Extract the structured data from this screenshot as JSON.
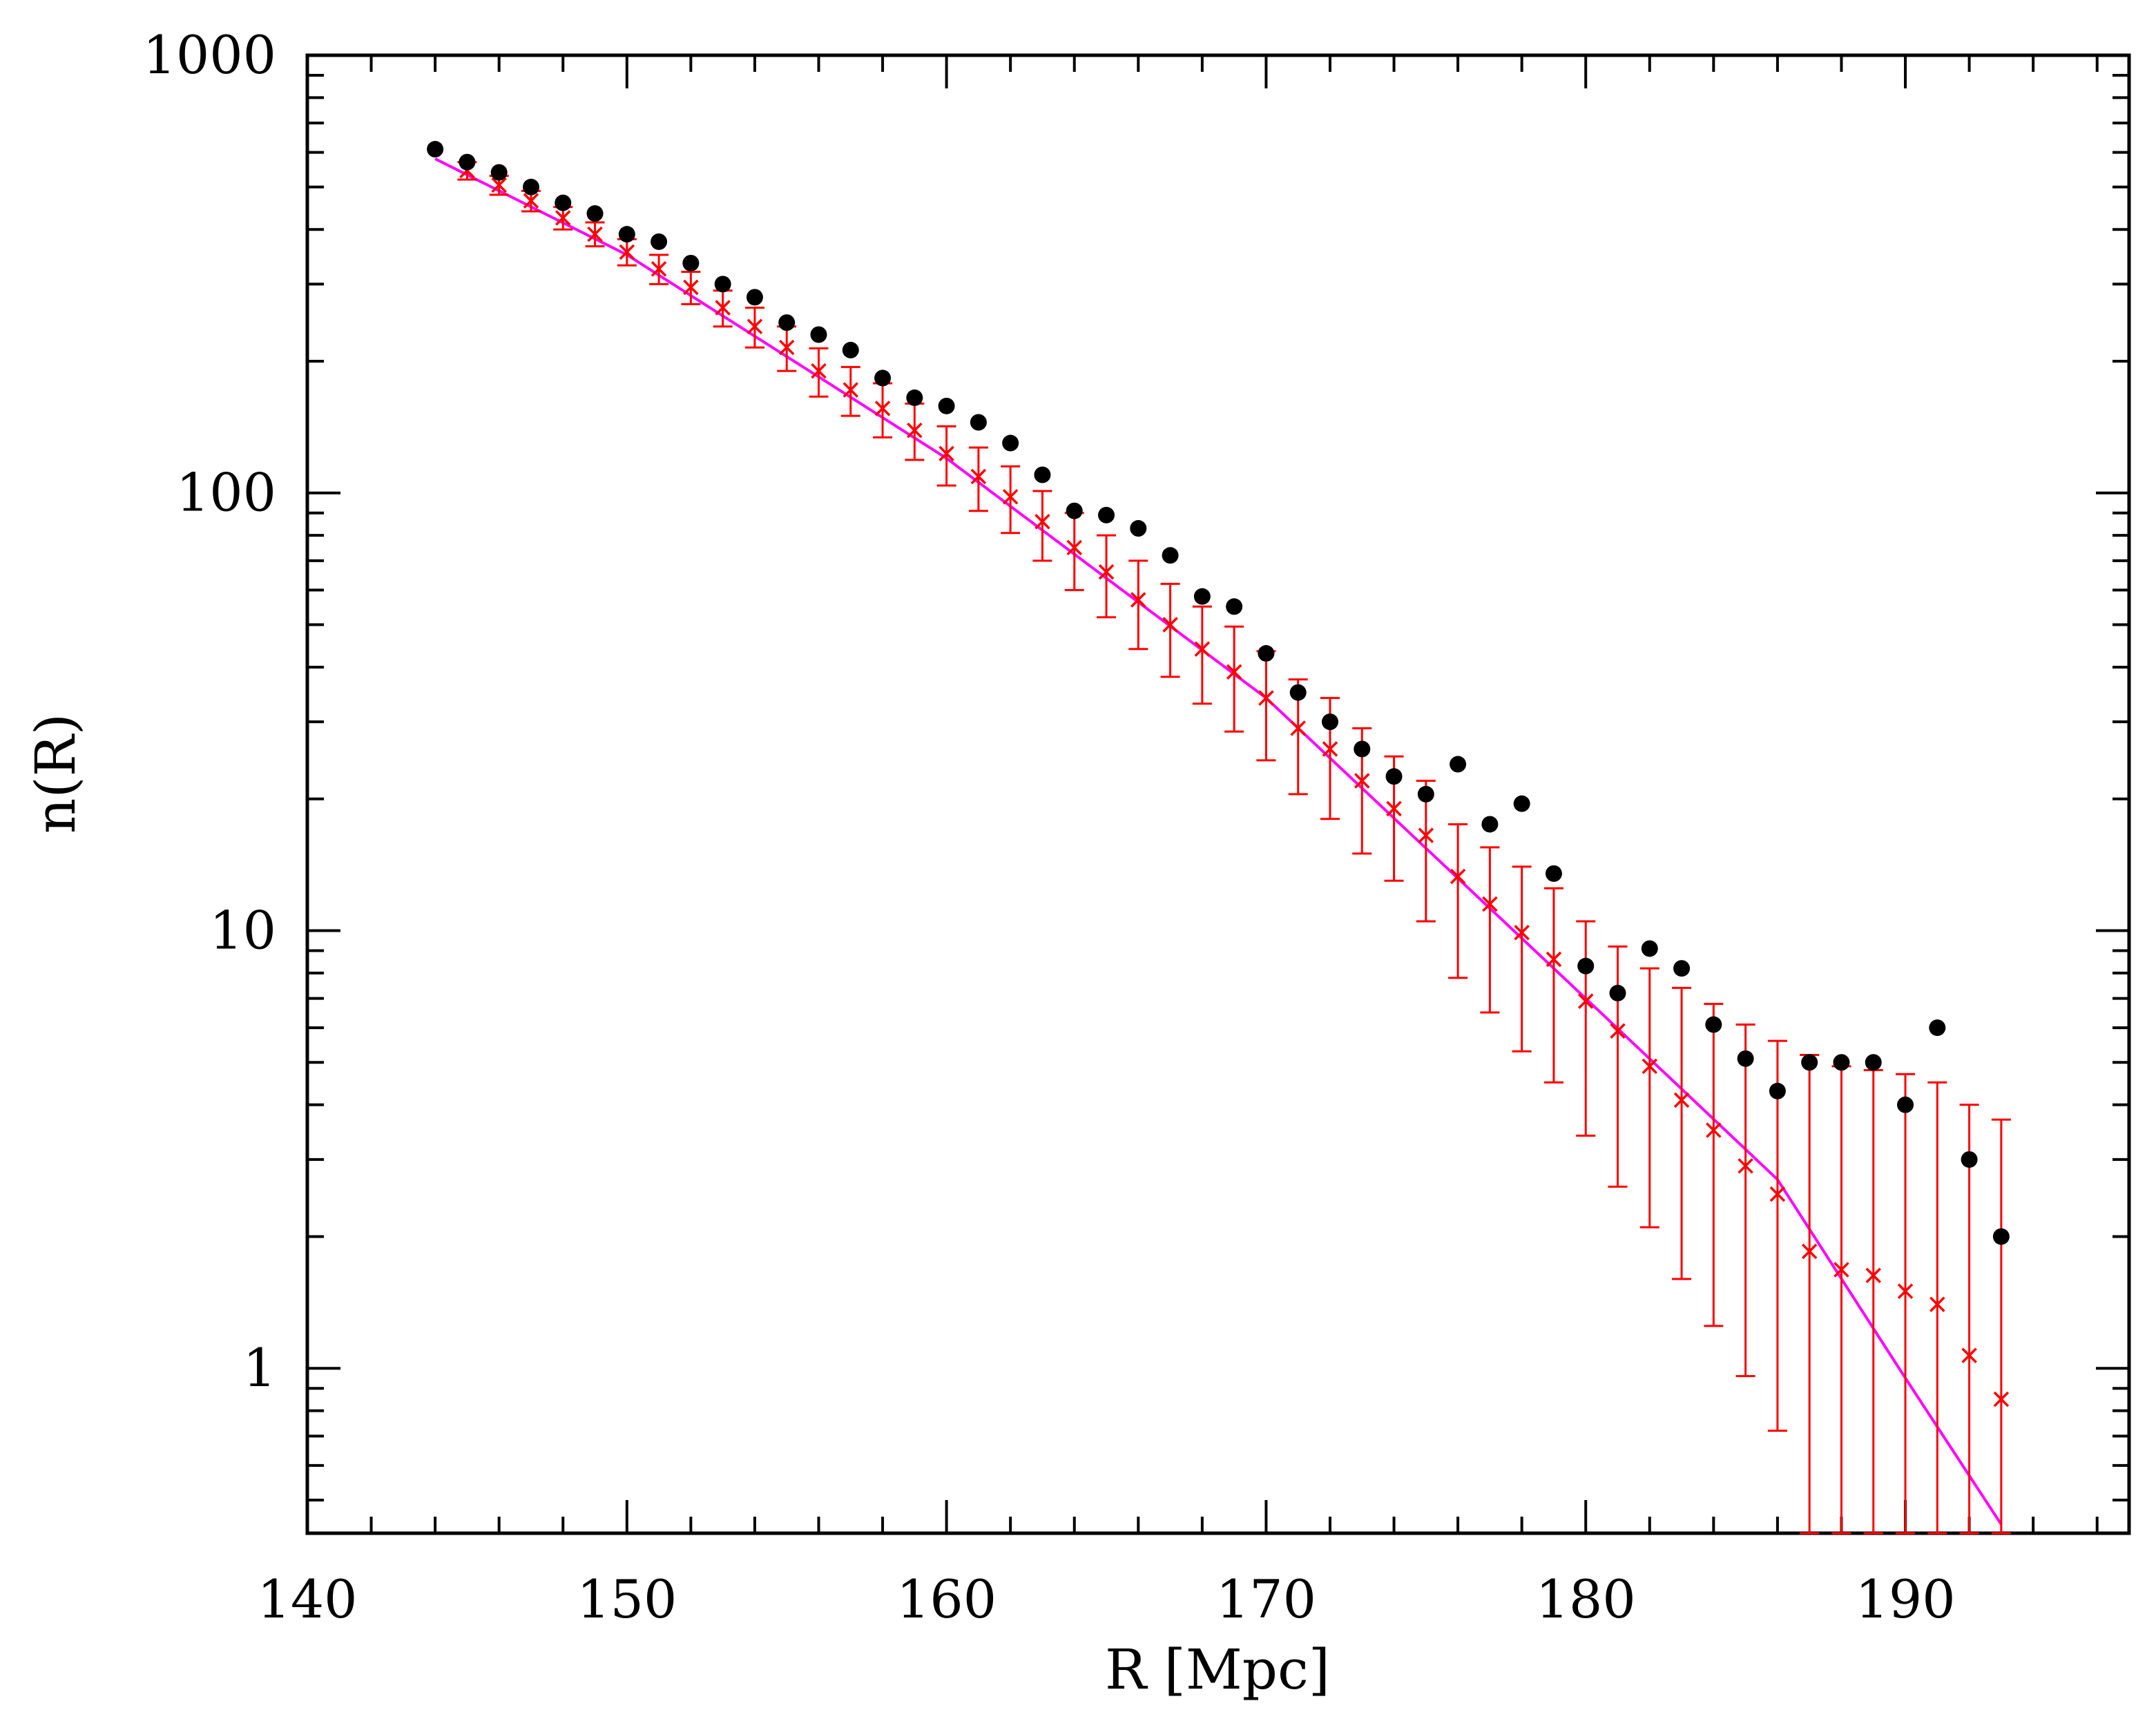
{
  "chart_data": {
    "type": "scatter",
    "title": "",
    "xlabel": "R [Mpc]",
    "ylabel": "n(R)",
    "xlim": [
      140,
      197
    ],
    "ylim": [
      0.42,
      1000
    ],
    "yscale": "log",
    "grid": false,
    "x_ticks": [
      140,
      150,
      160,
      170,
      180,
      190
    ],
    "x_tick_labels": [
      "140",
      "150",
      "160",
      "170",
      "180",
      "190"
    ],
    "y_ticks": [
      1,
      10,
      100,
      1000
    ],
    "y_tick_labels": [
      "1",
      "10",
      "100",
      "1000"
    ],
    "series": [
      {
        "marker": "filled-circle",
        "color": "#000000",
        "x": [
          144,
          145,
          146,
          147,
          148,
          149,
          150,
          151,
          152,
          153,
          154,
          155,
          156,
          157,
          158,
          159,
          160,
          161,
          162,
          163,
          164,
          165,
          166,
          167,
          168,
          169,
          170,
          171,
          172,
          173,
          174,
          175,
          176,
          177,
          178,
          179,
          180,
          181,
          182,
          183,
          184,
          185,
          186,
          187,
          188,
          189,
          190,
          191,
          192,
          193
        ],
        "values": [
          610,
          570,
          540,
          500,
          460,
          435,
          390,
          375,
          335,
          300,
          280,
          245,
          230,
          212,
          183,
          165,
          158,
          145,
          130,
          110,
          91,
          89,
          83,
          72,
          58,
          55,
          43,
          35,
          30,
          26,
          22.5,
          20.5,
          24,
          17.5,
          19.5,
          13.5,
          8.3,
          7.2,
          9.1,
          8.2,
          6.1,
          5.1,
          4.3,
          5.0,
          5.0,
          5.0,
          4.0,
          6.0,
          3.0,
          2.0
        ]
      },
      {
        "marker": "cross",
        "color": "#ff0000",
        "x": [
          145,
          146,
          147,
          148,
          149,
          150,
          151,
          152,
          153,
          154,
          155,
          156,
          157,
          158,
          159,
          160,
          161,
          162,
          163,
          164,
          165,
          166,
          167,
          168,
          169,
          170,
          171,
          172,
          173,
          174,
          175,
          176,
          177,
          178,
          179,
          180,
          181,
          182,
          183,
          184,
          185,
          186,
          187,
          188,
          189,
          190,
          191,
          192,
          193
        ],
        "values": [
          545,
          505,
          465,
          425,
          390,
          355,
          325,
          295,
          265,
          240,
          215,
          190,
          172,
          156,
          139,
          123,
          109,
          98,
          86,
          75,
          66,
          57,
          50,
          44,
          39,
          34,
          29,
          26,
          22,
          19,
          16.5,
          13.3,
          11.5,
          9.9,
          8.6,
          6.9,
          5.9,
          4.9,
          4.1,
          3.5,
          2.9,
          2.5,
          1.85,
          1.68,
          1.63,
          1.5,
          1.4,
          1.07,
          0.85
        ],
        "err_low": [
          520,
          480,
          440,
          400,
          366,
          331,
          300,
          270,
          240,
          215,
          190,
          166,
          150,
          134,
          119,
          104,
          91,
          81,
          70,
          60,
          52,
          44,
          38,
          33,
          28.5,
          24.5,
          20.5,
          18,
          15,
          13,
          10.5,
          7.8,
          6.5,
          5.3,
          4.5,
          3.4,
          2.6,
          2.1,
          1.6,
          1.25,
          0.96,
          0.72,
          0.4,
          0.4,
          0.4,
          0.4,
          0.4,
          0.4,
          0.4
        ],
        "err_high": [
          570,
          530,
          490,
          450,
          415,
          380,
          350,
          320,
          290,
          265,
          240,
          214,
          194,
          178,
          160,
          142,
          127,
          115,
          101,
          90,
          80,
          70,
          62,
          55,
          49.5,
          43.5,
          37.5,
          34,
          29,
          25,
          22,
          17.5,
          15.5,
          14,
          12.5,
          10.5,
          9.2,
          8.2,
          7.4,
          6.8,
          6.1,
          5.6,
          5.2,
          4.9,
          4.8,
          4.7,
          4.5,
          4.0,
          3.7
        ]
      },
      {
        "marker": "line",
        "color": "#ff00ff",
        "x": [
          144,
          150,
          160,
          170,
          180,
          186,
          190,
          193
        ],
        "values": [
          580,
          350,
          120,
          34,
          7.0,
          2.7,
          0.95,
          0.44
        ]
      }
    ]
  }
}
